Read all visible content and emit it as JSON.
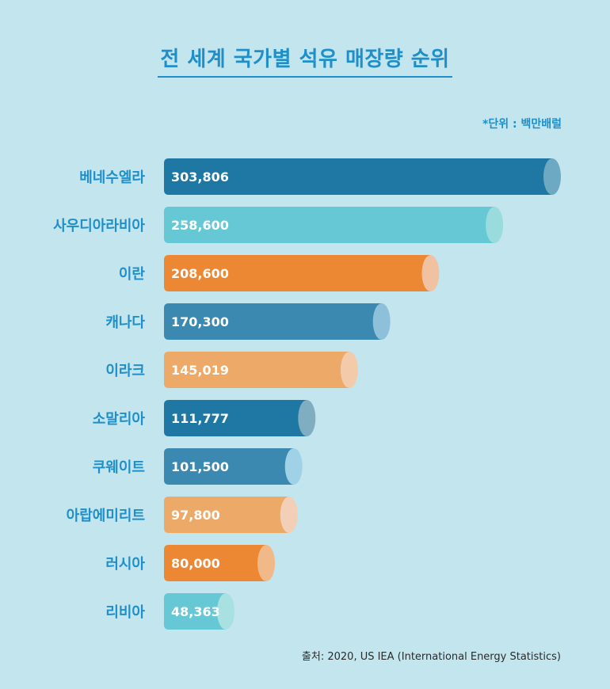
{
  "header": {
    "title": "전 세계 국가별 석유 매장량 순위",
    "unit": "*단위 : 백만배럴"
  },
  "footer": {
    "source": "출처: 2020, US IEA (International Energy Statistics)"
  },
  "chart_data": {
    "type": "bar",
    "orientation": "horizontal",
    "title": "전 세계 국가별 석유 매장량 순위",
    "categories": [
      "베네수엘라",
      "사우디아라비아",
      "이란",
      "캐나다",
      "이라크",
      "소말리아",
      "쿠웨이트",
      "아랍에미리트",
      "러시아",
      "리비아"
    ],
    "values": [
      303806,
      258600,
      208600,
      170300,
      145019,
      111777,
      101500,
      97800,
      80000,
      48363
    ],
    "value_labels": [
      "303,806",
      "258,600",
      "208,600",
      "170,300",
      "145,019",
      "111,777",
      "101,500",
      "97,800",
      "80,000",
      "48,363"
    ],
    "colors": [
      "#1f78a3",
      "#66c8d4",
      "#ec8833",
      "#3b88b0",
      "#eda967",
      "#1f78a3",
      "#3b88b0",
      "#eda967",
      "#ec8833",
      "#66c8d4"
    ],
    "cap_colors": [
      "#6ea9c3",
      "#9adbde",
      "#f1c2a2",
      "#8ec1d9",
      "#f3cbaa",
      "#7fadc1",
      "#9fd2e6",
      "#f3cfb7",
      "#f1b987",
      "#a9e1e3"
    ],
    "unit": "백만배럴",
    "grid": false,
    "legend": "none"
  }
}
